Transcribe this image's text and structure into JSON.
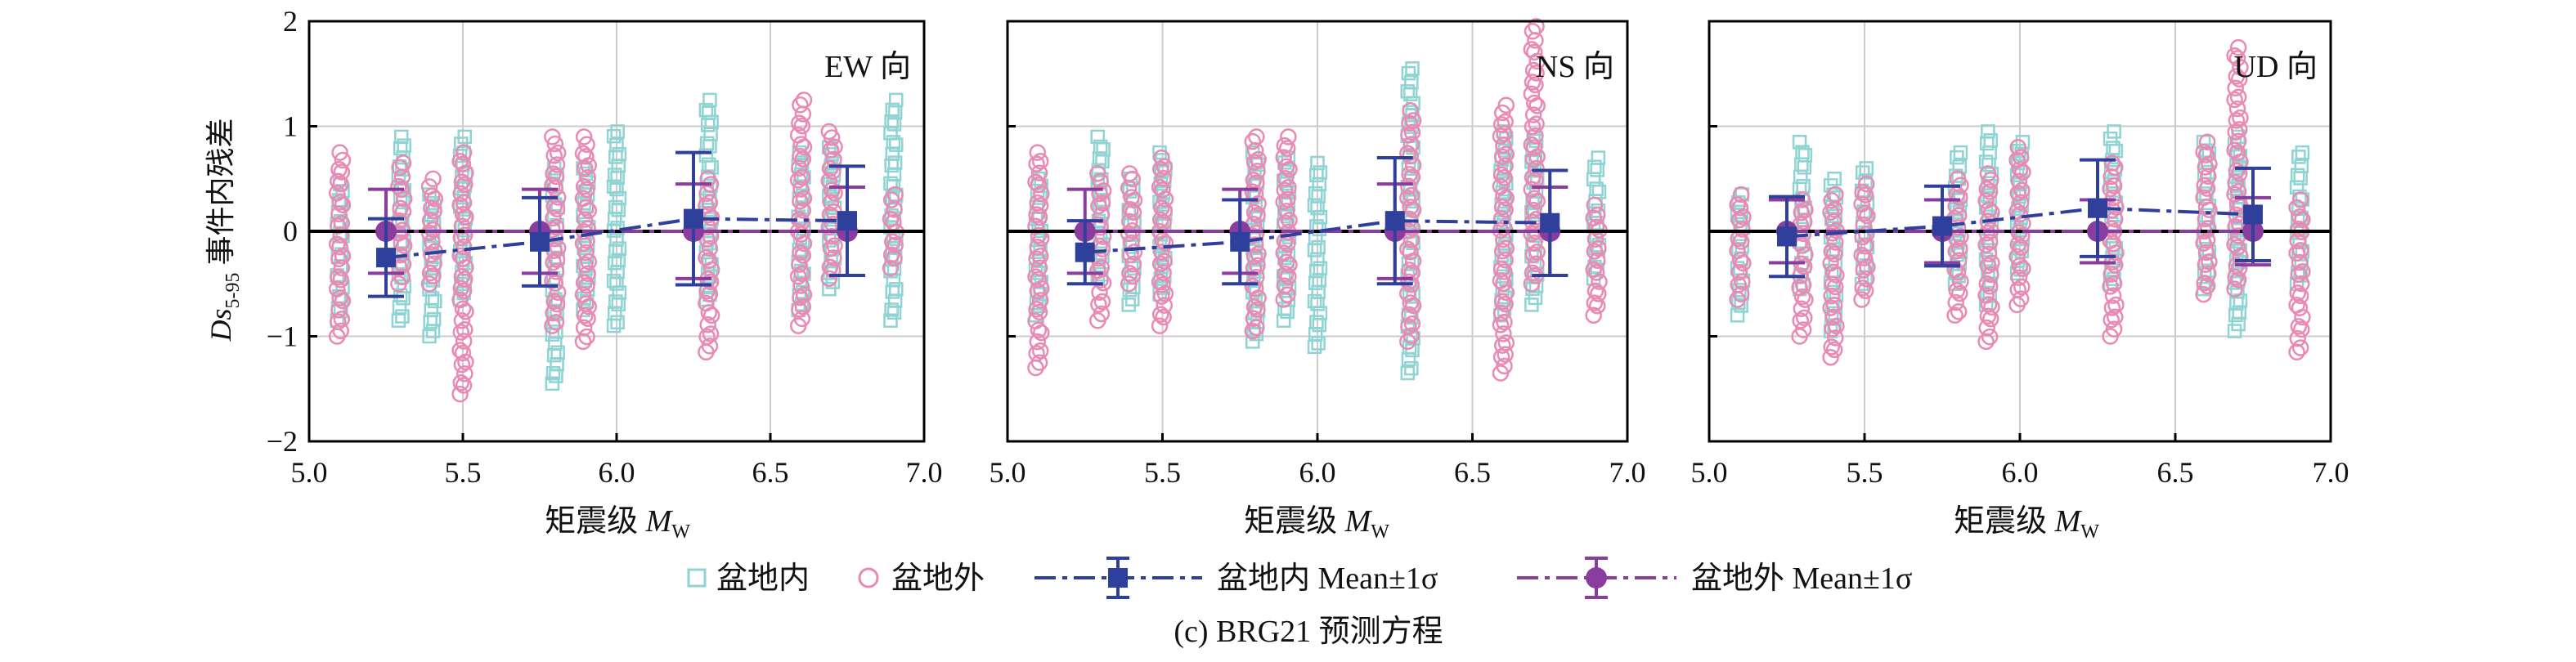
{
  "figure": {
    "caption": "(c) BRG21 预测方程",
    "ylabel_main": "Ds",
    "ylabel_sub": "5-95",
    "ylabel_rest": " 事件内残差",
    "xlabel_main": "矩震级 ",
    "xlabel_M": "M",
    "xlabel_sub": "W"
  },
  "legend": {
    "items": [
      {
        "label": "盆地内",
        "kind": "open-square",
        "color": "#8fd3d3"
      },
      {
        "label": "盆地外",
        "kind": "open-circle",
        "color": "#e98ab4"
      },
      {
        "label": "盆地内 Mean±1σ",
        "kind": "line-square",
        "color": "#2e3f9c"
      },
      {
        "label": "盆地外 Mean±1σ",
        "kind": "line-circle",
        "color": "#8a3d9e"
      }
    ]
  },
  "colors": {
    "inside": "#8fd3d3",
    "outside": "#e98ab4",
    "inside_mean": "#2e3f9c",
    "outside_mean": "#8a3d9e",
    "grid": "#cccccc",
    "zero_line": "#000000"
  },
  "chart_data": [
    {
      "type": "scatter",
      "panel_label": "EW 向",
      "xlim": [
        5.0,
        7.0
      ],
      "ylim": [
        -2,
        2
      ],
      "xticks": [
        "5.0",
        "5.5",
        "6.0",
        "6.5",
        "7.0"
      ],
      "yticks": [
        "−2",
        "−1",
        "0",
        "1",
        "2"
      ],
      "grid": true,
      "inside_scatter": [
        {
          "x": 5.1,
          "ymin": -0.85,
          "ymax": 0.45
        },
        {
          "x": 5.3,
          "ymin": -0.85,
          "ymax": 0.9
        },
        {
          "x": 5.4,
          "ymin": -1.0,
          "ymax": 0.35
        },
        {
          "x": 5.5,
          "ymin": -0.65,
          "ymax": 0.9
        },
        {
          "x": 5.8,
          "ymin": -1.45,
          "ymax": 0.6
        },
        {
          "x": 5.9,
          "ymin": -0.75,
          "ymax": 0.6
        },
        {
          "x": 6.0,
          "ymin": -0.9,
          "ymax": 0.95
        },
        {
          "x": 6.3,
          "ymin": -0.65,
          "ymax": 1.25
        },
        {
          "x": 6.6,
          "ymin": -0.75,
          "ymax": 0.75
        },
        {
          "x": 6.7,
          "ymin": -0.55,
          "ymax": 0.8
        },
        {
          "x": 6.9,
          "ymin": -0.85,
          "ymax": 1.25
        }
      ],
      "outside_scatter": [
        {
          "x": 5.1,
          "ymin": -1.0,
          "ymax": 0.75
        },
        {
          "x": 5.3,
          "ymin": -0.5,
          "ymax": 0.65
        },
        {
          "x": 5.4,
          "ymin": -0.5,
          "ymax": 0.5
        },
        {
          "x": 5.5,
          "ymin": -1.55,
          "ymax": 0.75
        },
        {
          "x": 5.8,
          "ymin": -0.9,
          "ymax": 0.9
        },
        {
          "x": 5.9,
          "ymin": -1.05,
          "ymax": 0.9
        },
        {
          "x": 6.3,
          "ymin": -1.15,
          "ymax": 0.5
        },
        {
          "x": 6.6,
          "ymin": -0.9,
          "ymax": 1.25
        },
        {
          "x": 6.7,
          "ymin": -0.45,
          "ymax": 0.95
        },
        {
          "x": 6.9,
          "ymin": -0.35,
          "ymax": 0.35
        }
      ],
      "inside_mean": {
        "x": [
          5.25,
          5.75,
          6.25,
          6.75
        ],
        "mean": [
          -0.25,
          -0.1,
          0.12,
          0.1
        ],
        "sigma": [
          0.37,
          0.42,
          0.63,
          0.52
        ]
      },
      "outside_mean": {
        "x": [
          5.25,
          5.75,
          6.25,
          6.75
        ],
        "mean": [
          0.0,
          0.0,
          0.0,
          0.0
        ],
        "sigma": [
          0.4,
          0.4,
          0.45,
          0.42
        ]
      }
    },
    {
      "type": "scatter",
      "panel_label": "NS 向",
      "xlim": [
        5.0,
        7.0
      ],
      "ylim": [
        -2,
        2
      ],
      "xticks": [
        "5.0",
        "5.5",
        "6.0",
        "6.5",
        "7.0"
      ],
      "yticks": [
        "−2",
        "−1",
        "0",
        "1",
        "2"
      ],
      "grid": true,
      "inside_scatter": [
        {
          "x": 5.1,
          "ymin": -0.8,
          "ymax": 0.5
        },
        {
          "x": 5.3,
          "ymin": -0.45,
          "ymax": 0.9
        },
        {
          "x": 5.4,
          "ymin": -0.7,
          "ymax": 0.5
        },
        {
          "x": 5.5,
          "ymin": -0.6,
          "ymax": 0.75
        },
        {
          "x": 5.8,
          "ymin": -1.05,
          "ymax": 0.75
        },
        {
          "x": 5.9,
          "ymin": -0.85,
          "ymax": 0.7
        },
        {
          "x": 6.0,
          "ymin": -1.1,
          "ymax": 0.65
        },
        {
          "x": 6.3,
          "ymin": -1.35,
          "ymax": 1.55
        },
        {
          "x": 6.6,
          "ymin": -0.8,
          "ymax": 0.95
        },
        {
          "x": 6.7,
          "ymin": -0.7,
          "ymax": 0.9
        },
        {
          "x": 6.9,
          "ymin": -0.45,
          "ymax": 0.7
        }
      ],
      "outside_scatter": [
        {
          "x": 5.1,
          "ymin": -1.3,
          "ymax": 0.75
        },
        {
          "x": 5.3,
          "ymin": -0.85,
          "ymax": 0.55
        },
        {
          "x": 5.4,
          "ymin": -0.5,
          "ymax": 0.55
        },
        {
          "x": 5.5,
          "ymin": -0.9,
          "ymax": 0.7
        },
        {
          "x": 5.8,
          "ymin": -0.95,
          "ymax": 0.9
        },
        {
          "x": 5.9,
          "ymin": -0.65,
          "ymax": 0.9
        },
        {
          "x": 6.3,
          "ymin": -1.05,
          "ymax": 1.15
        },
        {
          "x": 6.6,
          "ymin": -1.35,
          "ymax": 1.2
        },
        {
          "x": 6.7,
          "ymin": -0.5,
          "ymax": 1.95
        },
        {
          "x": 6.9,
          "ymin": -0.8,
          "ymax": 0.25
        }
      ],
      "inside_mean": {
        "x": [
          5.25,
          5.75,
          6.25,
          6.75
        ],
        "mean": [
          -0.2,
          -0.1,
          0.1,
          0.08
        ],
        "sigma": [
          0.3,
          0.4,
          0.6,
          0.5
        ]
      },
      "outside_mean": {
        "x": [
          5.25,
          5.75,
          6.25,
          6.75
        ],
        "mean": [
          0.0,
          0.0,
          0.0,
          0.0
        ],
        "sigma": [
          0.4,
          0.4,
          0.45,
          0.42
        ]
      }
    },
    {
      "type": "scatter",
      "panel_label": "UD 向",
      "xlim": [
        5.0,
        7.0
      ],
      "ylim": [
        -2,
        2
      ],
      "xticks": [
        "5.0",
        "5.5",
        "6.0",
        "6.5",
        "7.0"
      ],
      "yticks": [
        "−2",
        "−1",
        "0",
        "1",
        "2"
      ],
      "grid": true,
      "inside_scatter": [
        {
          "x": 5.1,
          "ymin": -0.8,
          "ymax": 0.35
        },
        {
          "x": 5.3,
          "ymin": -0.55,
          "ymax": 0.85
        },
        {
          "x": 5.4,
          "ymin": -0.95,
          "ymax": 0.5
        },
        {
          "x": 5.5,
          "ymin": -0.5,
          "ymax": 0.6
        },
        {
          "x": 5.8,
          "ymin": -0.5,
          "ymax": 0.75
        },
        {
          "x": 5.9,
          "ymin": -0.7,
          "ymax": 0.95
        },
        {
          "x": 6.0,
          "ymin": -0.4,
          "ymax": 0.85
        },
        {
          "x": 6.3,
          "ymin": -0.5,
          "ymax": 0.95
        },
        {
          "x": 6.6,
          "ymin": -0.55,
          "ymax": 0.85
        },
        {
          "x": 6.7,
          "ymin": -0.95,
          "ymax": 0.9
        },
        {
          "x": 6.9,
          "ymin": -0.5,
          "ymax": 0.75
        }
      ],
      "outside_scatter": [
        {
          "x": 5.1,
          "ymin": -0.65,
          "ymax": 0.35
        },
        {
          "x": 5.3,
          "ymin": -1.0,
          "ymax": 0.3
        },
        {
          "x": 5.4,
          "ymin": -1.2,
          "ymax": 0.35
        },
        {
          "x": 5.5,
          "ymin": -0.65,
          "ymax": 0.45
        },
        {
          "x": 5.8,
          "ymin": -0.8,
          "ymax": 0.5
        },
        {
          "x": 5.9,
          "ymin": -1.05,
          "ymax": 0.55
        },
        {
          "x": 6.0,
          "ymin": -0.7,
          "ymax": 0.8
        },
        {
          "x": 6.3,
          "ymin": -1.0,
          "ymax": 0.65
        },
        {
          "x": 6.6,
          "ymin": -0.6,
          "ymax": 0.85
        },
        {
          "x": 6.7,
          "ymin": -0.55,
          "ymax": 1.75
        },
        {
          "x": 6.9,
          "ymin": -1.15,
          "ymax": 0.3
        }
      ],
      "inside_mean": {
        "x": [
          5.25,
          5.75,
          6.25,
          6.75
        ],
        "mean": [
          -0.05,
          0.05,
          0.22,
          0.16
        ],
        "sigma": [
          0.38,
          0.38,
          0.46,
          0.44
        ]
      },
      "outside_mean": {
        "x": [
          5.25,
          5.75,
          6.25,
          6.75
        ],
        "mean": [
          0.0,
          0.0,
          0.0,
          0.0
        ],
        "sigma": [
          0.3,
          0.3,
          0.3,
          0.32
        ]
      }
    }
  ]
}
